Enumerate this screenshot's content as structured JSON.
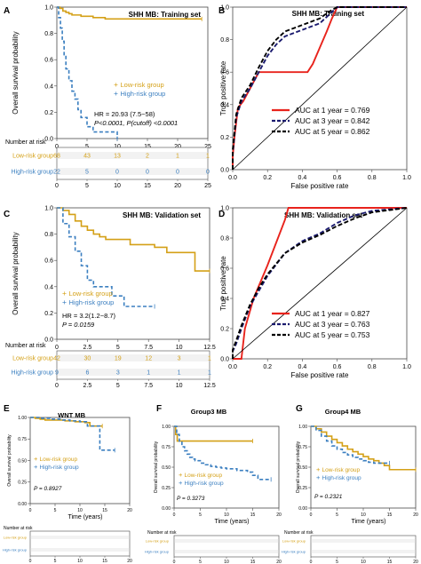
{
  "colors": {
    "low": "#d4a017",
    "high": "#3b7fc0",
    "red": "#e8231c",
    "navy": "#1a1a6e",
    "black": "#000000",
    "frame": "#4a4a4a",
    "band": "#d9d9d9"
  },
  "chart_data": [
    {
      "panel": "A",
      "type": "line",
      "title": "SHH MB: Training set",
      "xlabel": "Time (years)",
      "ylabel": "Overall survival probability",
      "xlim": [
        0,
        25
      ],
      "ylim": [
        0,
        1
      ],
      "xticks": [
        "0",
        "5",
        "10",
        "15",
        "20",
        "25"
      ],
      "yticks": [
        "0.0",
        "0.2",
        "0.4",
        "0.6",
        "0.8",
        "1.0"
      ],
      "legend": [
        "Low-risk group",
        "High-risk group"
      ],
      "annotations": [
        "HR = 20.93 (7.5−58)",
        "P<0.0001, P(cutoff) <0.0001"
      ],
      "series": [
        {
          "name": "Low-risk group",
          "style": "solid",
          "color": "low",
          "x": [
            0,
            0.5,
            1.0,
            1.5,
            2.0,
            2.5,
            4,
            6,
            8,
            24
          ],
          "y": [
            1.0,
            0.99,
            0.97,
            0.96,
            0.95,
            0.94,
            0.93,
            0.92,
            0.91,
            0.91
          ]
        },
        {
          "name": "High-risk group",
          "style": "dashed",
          "color": "high",
          "x": [
            0,
            0.3,
            0.6,
            0.9,
            1.2,
            1.5,
            2.0,
            2.5,
            3.0,
            3.5,
            4.0,
            5.0,
            6.0,
            9.0,
            10.0
          ],
          "y": [
            1.0,
            0.92,
            0.84,
            0.74,
            0.63,
            0.53,
            0.44,
            0.36,
            0.3,
            0.22,
            0.16,
            0.09,
            0.05,
            0.05,
            0.0
          ]
        }
      ],
      "risk_table": {
        "title": "Number at risk",
        "xticks": [
          "0",
          "5",
          "10",
          "15",
          "20",
          "25"
        ],
        "rows": [
          {
            "name": "Low-risk group",
            "color": "low",
            "values": [
              "68",
              "43",
              "13",
              "2",
              "1",
              "1"
            ]
          },
          {
            "name": "High-risk group",
            "color": "high",
            "values": [
              "22",
              "5",
              "0",
              "0",
              "0",
              "0"
            ]
          }
        ]
      }
    },
    {
      "panel": "B",
      "type": "line",
      "title": "SHH MB: Training set",
      "xlabel": "False positive rate",
      "ylabel": "True positive rate",
      "xlim": [
        0,
        1
      ],
      "ylim": [
        0,
        1
      ],
      "xticks": [
        "0.0",
        "0.2",
        "0.4",
        "0.6",
        "0.8",
        "1.0"
      ],
      "yticks": [
        "0.0",
        "0.2",
        "0.4",
        "0.6",
        "0.8",
        "1.0"
      ],
      "legend": [
        "AUC at 1 year = 0.769",
        "AUC at 3 year = 0.842",
        "AUC at 5 year = 0.862"
      ],
      "series": [
        {
          "name": "AUC at 1 year = 0.769",
          "style": "solid",
          "color": "red",
          "x": [
            0,
            0,
            0.01,
            0.03,
            0.06,
            0.1,
            0.15,
            0.43,
            0.46,
            0.5,
            0.54,
            0.57,
            0.6,
            1.0
          ],
          "y": [
            0,
            0.08,
            0.2,
            0.38,
            0.42,
            0.5,
            0.6,
            0.6,
            0.65,
            0.75,
            0.85,
            0.93,
            1.0,
            1.0
          ]
        },
        {
          "name": "AUC at 3 year = 0.842",
          "style": "dashed",
          "color": "navy",
          "x": [
            0,
            0,
            0.02,
            0.05,
            0.1,
            0.15,
            0.2,
            0.25,
            0.3,
            0.4,
            0.5,
            0.55,
            0.6,
            1.0
          ],
          "y": [
            0,
            0.1,
            0.32,
            0.42,
            0.5,
            0.6,
            0.7,
            0.77,
            0.82,
            0.86,
            0.9,
            0.95,
            1.0,
            1.0
          ]
        },
        {
          "name": "AUC at 5 year = 0.862",
          "style": "dashed",
          "color": "black",
          "x": [
            0,
            0,
            0.02,
            0.05,
            0.1,
            0.15,
            0.2,
            0.25,
            0.3,
            0.4,
            0.5,
            0.55,
            0.6,
            1.0
          ],
          "y": [
            0,
            0.12,
            0.34,
            0.44,
            0.52,
            0.63,
            0.73,
            0.8,
            0.85,
            0.89,
            0.93,
            0.97,
            1.0,
            1.0
          ]
        },
        {
          "name": "",
          "style": "solid",
          "color": "black",
          "x": [
            0,
            1
          ],
          "y": [
            0,
            1
          ]
        }
      ]
    },
    {
      "panel": "C",
      "type": "line",
      "title": "SHH MB: Validation set",
      "xlabel": "Time (years)",
      "ylabel": "Overall survival probability",
      "xlim": [
        0,
        12.5
      ],
      "ylim": [
        0,
        1
      ],
      "xticks": [
        "0",
        "2.5",
        "5",
        "7.5",
        "10",
        "12.5"
      ],
      "yticks": [
        "0.0",
        "0.2",
        "0.4",
        "0.6",
        "0.8",
        "1.0"
      ],
      "legend": [
        "Low-risk group",
        "High-risk group"
      ],
      "annotations": [
        "HR = 3.2(1.2−8.7)",
        "P = 0.0159"
      ],
      "series": [
        {
          "name": "Low-risk group",
          "style": "solid",
          "color": "low",
          "x": [
            0,
            0.5,
            1.0,
            1.5,
            2.0,
            2.5,
            3.0,
            3.5,
            4.0,
            5.0,
            6.0,
            7.0,
            8.0,
            9.0,
            10.5,
            11.3,
            12.5
          ],
          "y": [
            1.0,
            0.98,
            0.95,
            0.9,
            0.86,
            0.83,
            0.8,
            0.78,
            0.76,
            0.76,
            0.72,
            0.72,
            0.7,
            0.66,
            0.66,
            0.52,
            0.52
          ]
        },
        {
          "name": "High-risk group",
          "style": "dashed",
          "color": "high",
          "x": [
            0,
            0.5,
            1.0,
            1.5,
            2.0,
            2.5,
            3.0,
            4.5,
            5.0,
            5.5,
            8.0
          ],
          "y": [
            1.0,
            0.88,
            0.78,
            0.67,
            0.56,
            0.45,
            0.4,
            0.33,
            0.33,
            0.25,
            0.25
          ]
        }
      ],
      "risk_table": {
        "title": "Number at risk",
        "xticks": [
          "0",
          "2.5",
          "5",
          "7.5",
          "10",
          "12.5"
        ],
        "rows": [
          {
            "name": "Low-risk group",
            "color": "low",
            "values": [
              "42",
              "30",
              "19",
              "12",
              "3",
              "1"
            ]
          },
          {
            "name": "High-risk group",
            "color": "high",
            "values": [
              "9",
              "6",
              "3",
              "1",
              "1",
              "1"
            ]
          }
        ]
      }
    },
    {
      "panel": "D",
      "type": "line",
      "title": "SHH MB: Validation set",
      "xlabel": "False positive rate",
      "ylabel": "True positive rate",
      "xlim": [
        0,
        1
      ],
      "ylim": [
        0,
        1
      ],
      "xticks": [
        "0.0",
        "0.2",
        "0.4",
        "0.6",
        "0.8",
        "1.0"
      ],
      "yticks": [
        "0.0",
        "0.2",
        "0.4",
        "0.6",
        "0.8",
        "1.0"
      ],
      "legend": [
        "AUC at 1 year = 0.827",
        "AUC at 3 year = 0.763",
        "AUC at 5 year = 0.753"
      ],
      "series": [
        {
          "name": "AUC at 1 year = 0.827",
          "style": "solid",
          "color": "red",
          "x": [
            0,
            0.05,
            0.07,
            0.12,
            0.2,
            0.26,
            0.3,
            0.32,
            1.0
          ],
          "y": [
            0,
            0,
            0.2,
            0.4,
            0.62,
            0.8,
            0.92,
            1.0,
            1.0
          ]
        },
        {
          "name": "AUC at 3 year = 0.763",
          "style": "dashed",
          "color": "navy",
          "x": [
            0,
            0,
            0.02,
            0.05,
            0.1,
            0.15,
            0.2,
            0.3,
            0.4,
            0.5,
            0.6,
            0.7,
            0.8,
            1.0
          ],
          "y": [
            0,
            0.05,
            0.1,
            0.2,
            0.35,
            0.45,
            0.55,
            0.7,
            0.78,
            0.83,
            0.9,
            0.95,
            0.98,
            1.0
          ]
        },
        {
          "name": "AUC at 5 year = 0.753",
          "style": "dashed",
          "color": "black",
          "x": [
            0,
            0,
            0.02,
            0.05,
            0.1,
            0.15,
            0.2,
            0.3,
            0.4,
            0.5,
            0.6,
            0.7,
            0.8,
            1.0
          ],
          "y": [
            0,
            0.06,
            0.12,
            0.22,
            0.36,
            0.47,
            0.56,
            0.7,
            0.77,
            0.82,
            0.88,
            0.93,
            0.97,
            1.0
          ]
        },
        {
          "name": "",
          "style": "solid",
          "color": "black",
          "x": [
            0,
            1
          ],
          "y": [
            0,
            1
          ]
        }
      ]
    },
    {
      "panel": "E",
      "type": "line",
      "title": "WNT MB",
      "xlabel": "Time (years)",
      "ylabel": "Overall survival probability",
      "xlim": [
        0,
        20
      ],
      "ylim": [
        0,
        1
      ],
      "xticks": [
        "0",
        "5",
        "10",
        "15",
        "20"
      ],
      "yticks": [
        "0.00",
        "0.25",
        "0.50",
        "0.75",
        "1.00"
      ],
      "legend": [
        "Low-risk group",
        "High-risk group"
      ],
      "annotations": [
        "P = 0.8927"
      ],
      "series": [
        {
          "name": "Low-risk group",
          "style": "solid",
          "color": "low",
          "x": [
            0,
            1,
            2,
            3,
            5,
            7,
            9,
            11,
            12,
            13,
            14.5
          ],
          "y": [
            1.0,
            0.99,
            0.98,
            0.97,
            0.97,
            0.96,
            0.95,
            0.94,
            0.9,
            0.9,
            0.9
          ]
        },
        {
          "name": "High-risk group",
          "style": "dashed",
          "color": "high",
          "x": [
            0,
            2,
            4,
            6,
            8,
            10,
            11.5,
            12,
            13.5,
            14,
            17
          ],
          "y": [
            1.0,
            0.99,
            0.98,
            0.97,
            0.96,
            0.95,
            0.9,
            0.9,
            0.9,
            0.62,
            0.62
          ]
        }
      ],
      "risk_table": {
        "title": "Number at risk",
        "xticks": [
          "0",
          "5",
          "10",
          "15",
          "20"
        ],
        "rows": [
          {
            "name": "Low-risk group",
            "color": "low",
            "values": []
          },
          {
            "name": "High-risk group",
            "color": "high",
            "values": []
          }
        ]
      }
    },
    {
      "panel": "F",
      "type": "line",
      "title": "Group3 MB",
      "xlabel": "Time (years)",
      "ylabel": "Overall survival probability",
      "xlim": [
        0,
        20
      ],
      "ylim": [
        0,
        1
      ],
      "xticks": [
        "0",
        "5",
        "10",
        "15",
        "20"
      ],
      "yticks": [
        "0.00",
        "0.25",
        "0.50",
        "0.75",
        "1.00"
      ],
      "legend": [
        "Low-risk group",
        "High-risk group"
      ],
      "annotations": [
        "P = 0.3273"
      ],
      "series": [
        {
          "name": "Low-risk group",
          "style": "solid",
          "color": "low",
          "x": [
            0,
            0.3,
            0.6,
            15
          ],
          "y": [
            1.0,
            0.9,
            0.82,
            0.82
          ]
        },
        {
          "name": "High-risk group",
          "style": "dashed",
          "color": "high",
          "x": [
            0,
            0.5,
            1.0,
            1.5,
            2.0,
            2.5,
            3.0,
            3.5,
            4.0,
            5.0,
            6.0,
            7.0,
            8.0,
            9.0,
            10.0,
            12.0,
            14.0,
            15.0,
            16.0,
            18.5
          ],
          "y": [
            1.0,
            0.9,
            0.82,
            0.75,
            0.7,
            0.66,
            0.62,
            0.6,
            0.58,
            0.55,
            0.53,
            0.51,
            0.5,
            0.49,
            0.48,
            0.46,
            0.44,
            0.4,
            0.35,
            0.35
          ]
        }
      ],
      "risk_table": {
        "title": "Number at risk",
        "xticks": [
          "0",
          "5",
          "10",
          "15",
          "20"
        ],
        "rows": [
          {
            "name": "Low-risk group",
            "color": "low",
            "values": []
          },
          {
            "name": "High-risk group",
            "color": "high",
            "values": []
          }
        ]
      }
    },
    {
      "panel": "G",
      "type": "line",
      "title": "Group4 MB",
      "xlabel": "Time (years)",
      "ylabel": "Overall survival probability",
      "xlim": [
        0,
        20
      ],
      "ylim": [
        0,
        1
      ],
      "xticks": [
        "0",
        "5",
        "10",
        "15",
        "20"
      ],
      "yticks": [
        "0.00",
        "0.25",
        "0.50",
        "0.75",
        "1.00"
      ],
      "legend": [
        "Low-risk group",
        "High-risk group"
      ],
      "annotations": [
        "P = 0.2321"
      ],
      "series": [
        {
          "name": "Low-risk group",
          "style": "solid",
          "color": "low",
          "x": [
            0,
            1,
            2,
            3,
            4,
            5,
            6,
            7,
            8,
            9,
            10,
            11,
            12,
            13,
            14,
            15,
            20
          ],
          "y": [
            1.0,
            0.97,
            0.93,
            0.88,
            0.84,
            0.8,
            0.76,
            0.72,
            0.69,
            0.66,
            0.63,
            0.6,
            0.58,
            0.55,
            0.52,
            0.47,
            0.47
          ]
        },
        {
          "name": "High-risk group",
          "style": "dashed",
          "color": "high",
          "x": [
            0,
            1,
            2,
            3,
            4,
            5,
            6,
            7,
            8,
            9,
            10,
            11,
            12,
            13,
            15
          ],
          "y": [
            1.0,
            0.95,
            0.88,
            0.82,
            0.76,
            0.72,
            0.68,
            0.65,
            0.62,
            0.6,
            0.58,
            0.56,
            0.55,
            0.55,
            0.55
          ]
        }
      ],
      "risk_table": {
        "title": "Number at risk",
        "xticks": [
          "0",
          "5",
          "10",
          "15",
          "20"
        ],
        "rows": [
          {
            "name": "Low-risk group",
            "color": "low",
            "values": []
          },
          {
            "name": "High-risk group",
            "color": "high",
            "values": []
          }
        ]
      }
    }
  ]
}
